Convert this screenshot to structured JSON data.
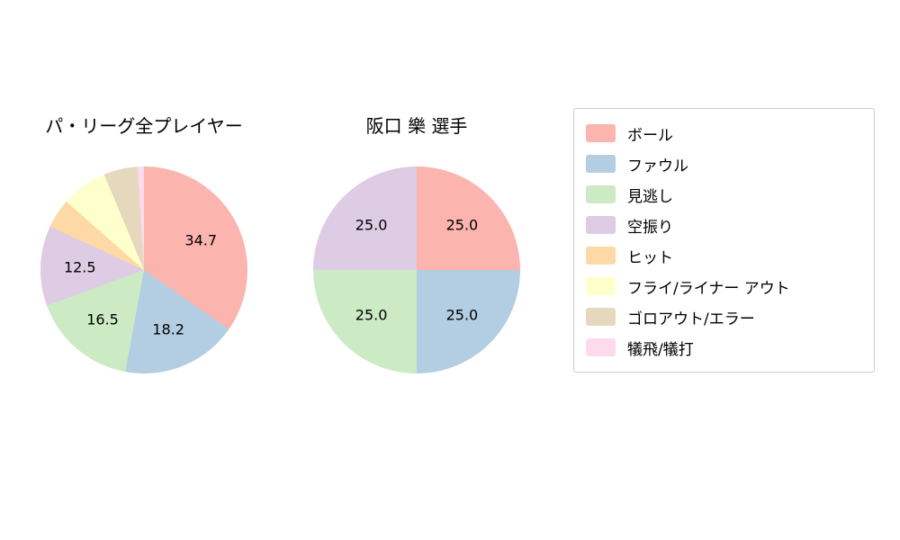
{
  "chart_data": [
    {
      "type": "pie",
      "title": "パ・リーグ全プレイヤー",
      "start_angle_deg_from_top_clockwise": 0,
      "label_format": "one-decimal-percent",
      "slices": [
        {
          "label": "ボール",
          "value": 34.7,
          "color": "#fbb4ae",
          "show_label": true
        },
        {
          "label": "ファウル",
          "value": 18.2,
          "color": "#b3cde3",
          "show_label": true
        },
        {
          "label": "見逃し",
          "value": 16.5,
          "color": "#ccebc5",
          "show_label": true
        },
        {
          "label": "空振り",
          "value": 12.5,
          "color": "#decbe4",
          "show_label": true
        },
        {
          "label": "ヒット",
          "value": 4.6,
          "color": "#fed9a6",
          "show_label": false
        },
        {
          "label": "フライ/ライナー アウト",
          "value": 7.2,
          "color": "#ffffcc",
          "show_label": false
        },
        {
          "label": "ゴロアウト/エラー",
          "value": 5.3,
          "color": "#e5d8bd",
          "show_label": false
        },
        {
          "label": "犠飛/犠打",
          "value": 1.0,
          "color": "#fddaec",
          "show_label": false
        }
      ]
    },
    {
      "type": "pie",
      "title": "阪口 樂 選手",
      "start_angle_deg_from_top_clockwise": 0,
      "label_format": "one-decimal-percent",
      "slices": [
        {
          "label": "ボール",
          "value": 25.0,
          "color": "#fbb4ae",
          "show_label": true
        },
        {
          "label": "ファウル",
          "value": 25.0,
          "color": "#b3cde3",
          "show_label": true
        },
        {
          "label": "見逃し",
          "value": 25.0,
          "color": "#ccebc5",
          "show_label": true
        },
        {
          "label": "空振り",
          "value": 25.0,
          "color": "#decbe4",
          "show_label": true
        }
      ]
    }
  ],
  "legend": {
    "position": "right",
    "items": [
      {
        "label": "ボール",
        "color": "#fbb4ae"
      },
      {
        "label": "ファウル",
        "color": "#b3cde3"
      },
      {
        "label": "見逃し",
        "color": "#ccebc5"
      },
      {
        "label": "空振り",
        "color": "#decbe4"
      },
      {
        "label": "ヒット",
        "color": "#fed9a6"
      },
      {
        "label": "フライ/ライナー アウト",
        "color": "#ffffcc"
      },
      {
        "label": "ゴロアウト/エラー",
        "color": "#e5d8bd"
      },
      {
        "label": "犠飛/犠打",
        "color": "#fddaec"
      }
    ]
  }
}
